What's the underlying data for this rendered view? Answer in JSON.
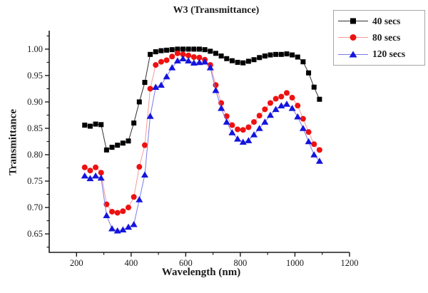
{
  "title": "W3 (Transmittance)",
  "background_color": "#ffffff",
  "chart_data": {
    "type": "line",
    "title": "W3 (Transmittance)",
    "xlabel": "Wavelength (nm)",
    "ylabel": "Transmittance",
    "xlim": [
      100,
      1200
    ],
    "ylim": [
      0.615,
      1.035
    ],
    "grid": false,
    "legend_position": "top-right",
    "axis_color": "#1a1a1a",
    "x_major_ticks": [
      200,
      400,
      600,
      800,
      1000,
      1200
    ],
    "x_minor_ticks": [
      300,
      500,
      700,
      900,
      1100
    ],
    "y_major_ticks": [
      0.65,
      0.7,
      0.75,
      0.8,
      0.85,
      0.9,
      0.95,
      1.0
    ],
    "y_minor_ticks": [
      0.625,
      0.675,
      0.725,
      0.775,
      0.825,
      0.875,
      0.925,
      0.975,
      1.025
    ],
    "x": [
      230,
      250,
      270,
      290,
      310,
      330,
      350,
      370,
      390,
      410,
      430,
      450,
      470,
      490,
      510,
      530,
      550,
      570,
      590,
      610,
      630,
      650,
      670,
      690,
      710,
      730,
      750,
      770,
      790,
      810,
      830,
      850,
      870,
      890,
      910,
      930,
      950,
      970,
      990,
      1010,
      1030,
      1050,
      1070,
      1090
    ],
    "series": [
      {
        "name": "40 secs",
        "marker": "square",
        "color": "#000000",
        "line_color": "#2f2f2f",
        "values": [
          0.856,
          0.854,
          0.858,
          0.857,
          0.809,
          0.814,
          0.818,
          0.822,
          0.826,
          0.86,
          0.9,
          0.937,
          0.99,
          0.995,
          0.997,
          0.998,
          0.999,
          1.0,
          1.0,
          1.0,
          1.0,
          1.0,
          0.999,
          0.996,
          0.992,
          0.987,
          0.982,
          0.978,
          0.975,
          0.974,
          0.977,
          0.98,
          0.984,
          0.987,
          0.989,
          0.99,
          0.99,
          0.991,
          0.989,
          0.985,
          0.976,
          0.955,
          0.928,
          0.905
        ]
      },
      {
        "name": "80 secs",
        "marker": "circle",
        "color": "#ee1111",
        "line_color": "#f59a9a",
        "values": [
          0.776,
          0.77,
          0.776,
          0.766,
          0.706,
          0.692,
          0.69,
          0.693,
          0.7,
          0.72,
          0.777,
          0.818,
          0.925,
          0.97,
          0.976,
          0.979,
          0.986,
          0.992,
          0.99,
          0.988,
          0.985,
          0.984,
          0.98,
          0.97,
          0.932,
          0.898,
          0.873,
          0.856,
          0.848,
          0.847,
          0.852,
          0.862,
          0.874,
          0.886,
          0.898,
          0.906,
          0.91,
          0.917,
          0.908,
          0.893,
          0.868,
          0.843,
          0.82,
          0.809
        ]
      },
      {
        "name": "120 secs",
        "marker": "triangle",
        "color": "#1414dd",
        "line_color": "#7a7ae8",
        "values": [
          0.76,
          0.755,
          0.76,
          0.756,
          0.685,
          0.66,
          0.656,
          0.658,
          0.663,
          0.668,
          0.715,
          0.762,
          0.873,
          0.928,
          0.932,
          0.948,
          0.965,
          0.978,
          0.982,
          0.978,
          0.974,
          0.975,
          0.976,
          0.965,
          0.922,
          0.888,
          0.862,
          0.842,
          0.83,
          0.824,
          0.827,
          0.838,
          0.85,
          0.862,
          0.875,
          0.886,
          0.893,
          0.896,
          0.888,
          0.872,
          0.85,
          0.825,
          0.8,
          0.788
        ]
      }
    ]
  }
}
